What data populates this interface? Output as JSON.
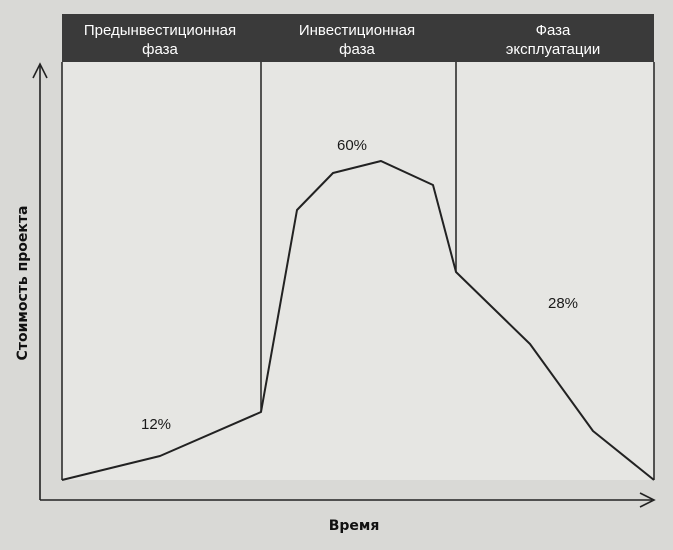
{
  "header": {
    "phases": [
      {
        "line1": "Предынвестиционная",
        "line2": "фаза"
      },
      {
        "line1": "Инвестиционная",
        "line2": "фаза"
      },
      {
        "line1": "Фаза",
        "line2": "эксплуатации"
      }
    ]
  },
  "axes": {
    "y_label": "Стоимость проекта",
    "x_label": "Время"
  },
  "shares": [
    "12%",
    "60%",
    "28%"
  ],
  "colors": {
    "header_bar": "#3a3a3a",
    "plot_background": "#e6e6e3",
    "line": "#222222"
  }
}
